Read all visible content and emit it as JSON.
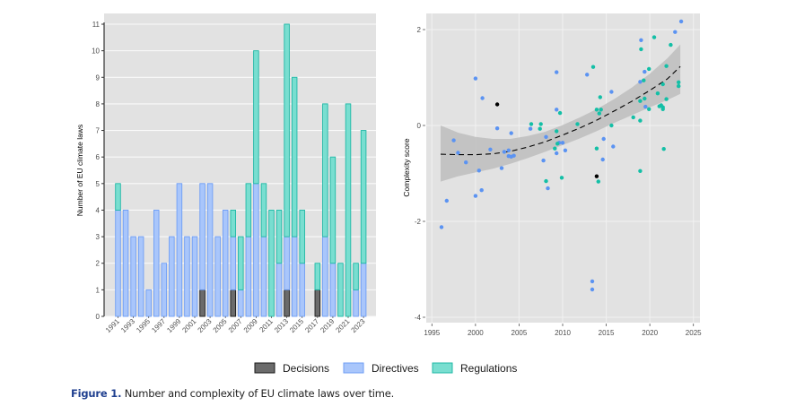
{
  "chart_data": [
    {
      "type": "bar",
      "stacked": true,
      "title": "",
      "xlabel": "",
      "ylabel": "Number of EU climate laws",
      "ylim": [
        0,
        11
      ],
      "yticks": [
        0,
        1,
        2,
        3,
        4,
        5,
        6,
        7,
        8,
        9,
        10,
        11
      ],
      "grid": true,
      "categories": [
        1991,
        1992,
        1993,
        1994,
        1995,
        1996,
        1997,
        1998,
        1999,
        2000,
        2001,
        2002,
        2003,
        2004,
        2005,
        2006,
        2007,
        2008,
        2009,
        2010,
        2011,
        2012,
        2013,
        2014,
        2015,
        2016,
        2017,
        2018,
        2019,
        2020,
        2021,
        2022,
        2023
      ],
      "xtick_labels": [
        "1991",
        "1993",
        "1995",
        "1997",
        "1999",
        "2001",
        "2003",
        "2005",
        "2007",
        "2009",
        "2011",
        "2013",
        "2015",
        "2017",
        "2019",
        "2021",
        "2023"
      ],
      "series": [
        {
          "name": "Decisions",
          "color": "#6b6b6b",
          "edge": "#1a1a1a",
          "values": [
            0,
            0,
            0,
            0,
            0,
            0,
            0,
            0,
            0,
            0,
            0,
            1,
            0,
            0,
            0,
            1,
            0,
            0,
            0,
            0,
            0,
            0,
            1,
            0,
            0,
            0,
            1,
            0,
            0,
            0,
            0,
            0,
            0
          ]
        },
        {
          "name": "Directives",
          "color": "#a9c6fb",
          "edge": "#6f9ef5",
          "values": [
            4,
            4,
            3,
            3,
            1,
            4,
            2,
            3,
            5,
            3,
            3,
            4,
            5,
            3,
            4,
            2,
            1,
            3,
            5,
            3,
            0,
            2,
            2,
            3,
            2,
            0,
            0,
            3,
            2,
            0,
            0,
            1,
            2
          ]
        },
        {
          "name": "Regulations",
          "color": "#79ded0",
          "edge": "#20b8a6",
          "values": [
            1,
            0,
            0,
            0,
            0,
            0,
            0,
            0,
            0,
            0,
            0,
            0,
            0,
            0,
            0,
            1,
            2,
            2,
            5,
            2,
            4,
            2,
            8,
            6,
            2,
            0,
            1,
            5,
            4,
            2,
            8,
            1,
            5
          ]
        }
      ]
    },
    {
      "type": "scatter",
      "title": "",
      "xlabel": "",
      "ylabel": "Complexity score",
      "xlim": [
        1994.5,
        2025.5
      ],
      "ylim": [
        -4.1,
        2.3
      ],
      "xticks": [
        1995,
        2000,
        2005,
        2010,
        2015,
        2020,
        2025
      ],
      "yticks": [
        -4,
        -2,
        0,
        2
      ],
      "grid": true,
      "series": [
        {
          "name": "Decisions",
          "color": "#000000",
          "points": [
            [
              2002.5,
              0.44
            ],
            [
              2013.9,
              -1.06
            ]
          ]
        },
        {
          "name": "Directives",
          "color": "#5b93f2",
          "points": [
            [
              1996.1,
              -2.12
            ],
            [
              1996.7,
              -1.57
            ],
            [
              1997.5,
              -0.31
            ],
            [
              1998.0,
              -0.57
            ],
            [
              1998.9,
              -0.77
            ],
            [
              2000.0,
              -1.47
            ],
            [
              2000.7,
              -1.35
            ],
            [
              2000.4,
              -0.94
            ],
            [
              2000.0,
              0.98
            ],
            [
              2000.8,
              0.57
            ],
            [
              2002.5,
              -0.06
            ],
            [
              2001.7,
              -0.5
            ],
            [
              2003.0,
              -0.89
            ],
            [
              2003.3,
              -0.55
            ],
            [
              2003.8,
              -0.52
            ],
            [
              2003.8,
              -0.64
            ],
            [
              2004.1,
              -0.65
            ],
            [
              2004.4,
              -0.63
            ],
            [
              2004.1,
              -0.16
            ],
            [
              2006.3,
              -0.07
            ],
            [
              2008.1,
              -0.24
            ],
            [
              2007.8,
              -0.73
            ],
            [
              2008.3,
              -1.31
            ],
            [
              2009.3,
              1.11
            ],
            [
              2012.8,
              1.06
            ],
            [
              2015.6,
              0.7
            ],
            [
              2009.3,
              0.33
            ],
            [
              2014.7,
              -0.28
            ],
            [
              2009.6,
              -0.36
            ],
            [
              2010.0,
              -0.36
            ],
            [
              2010.3,
              -0.52
            ],
            [
              2009.3,
              -0.58
            ],
            [
              2015.8,
              -0.44
            ],
            [
              2014.6,
              -0.71
            ],
            [
              2013.4,
              -3.25
            ],
            [
              2013.4,
              -3.42
            ],
            [
              2023.6,
              2.17
            ],
            [
              2022.9,
              1.95
            ],
            [
              2019.0,
              1.78
            ],
            [
              2019.4,
              1.12
            ],
            [
              2018.9,
              0.91
            ],
            [
              2019.5,
              0.39
            ]
          ]
        },
        {
          "name": "Regulations",
          "color": "#13bfa6",
          "points": [
            [
              2006.4,
              0.03
            ],
            [
              2007.5,
              0.03
            ],
            [
              2007.4,
              -0.07
            ],
            [
              2008.1,
              -1.16
            ],
            [
              2013.5,
              1.22
            ],
            [
              2014.3,
              0.59
            ],
            [
              2009.7,
              0.26
            ],
            [
              2013.9,
              0.33
            ],
            [
              2014.4,
              0.33
            ],
            [
              2014.2,
              0.25
            ],
            [
              2018.9,
              0.51
            ],
            [
              2018.1,
              0.17
            ],
            [
              2018.9,
              0.1
            ],
            [
              2011.7,
              0.03
            ],
            [
              2015.6,
              0.0
            ],
            [
              2009.3,
              -0.12
            ],
            [
              2009.4,
              -0.38
            ],
            [
              2009.1,
              -0.48
            ],
            [
              2013.9,
              -0.48
            ],
            [
              2014.1,
              -1.17
            ],
            [
              2009.9,
              -1.09
            ],
            [
              2018.9,
              -0.95
            ],
            [
              2020.5,
              1.84
            ],
            [
              2022.4,
              1.68
            ],
            [
              2019.0,
              1.59
            ],
            [
              2021.9,
              1.24
            ],
            [
              2019.9,
              1.18
            ],
            [
              2019.3,
              0.94
            ],
            [
              2021.5,
              0.86
            ],
            [
              2023.3,
              0.9
            ],
            [
              2023.3,
              0.82
            ],
            [
              2020.9,
              0.67
            ],
            [
              2021.9,
              0.55
            ],
            [
              2019.4,
              0.56
            ],
            [
              2019.9,
              0.34
            ],
            [
              2021.1,
              0.4
            ],
            [
              2021.3,
              0.42
            ],
            [
              2021.5,
              0.38
            ],
            [
              2021.5,
              0.34
            ],
            [
              2021.6,
              -0.49
            ]
          ]
        }
      ],
      "trend": {
        "style": "dashed",
        "color": "#000000",
        "band_color": "#bdbdbd",
        "fit": [
          [
            1996,
            -0.6
          ],
          [
            1998,
            -0.61
          ],
          [
            2000,
            -0.61
          ],
          [
            2002,
            -0.59
          ],
          [
            2004,
            -0.54
          ],
          [
            2006,
            -0.45
          ],
          [
            2008,
            -0.34
          ],
          [
            2010,
            -0.2
          ],
          [
            2012,
            -0.05
          ],
          [
            2014,
            0.12
          ],
          [
            2016,
            0.31
          ],
          [
            2018,
            0.51
          ],
          [
            2020,
            0.73
          ],
          [
            2022,
            0.97
          ],
          [
            2023.5,
            1.23
          ]
        ],
        "lower": [
          [
            1996,
            -1.17
          ],
          [
            1998,
            -1.06
          ],
          [
            2000,
            -0.98
          ],
          [
            2002,
            -0.9
          ],
          [
            2004,
            -0.8
          ],
          [
            2006,
            -0.68
          ],
          [
            2008,
            -0.55
          ],
          [
            2010,
            -0.41
          ],
          [
            2012,
            -0.27
          ],
          [
            2014,
            -0.11
          ],
          [
            2016,
            0.06
          ],
          [
            2018,
            0.22
          ],
          [
            2020,
            0.38
          ],
          [
            2022,
            0.53
          ],
          [
            2023.5,
            0.66
          ]
        ],
        "upper": [
          [
            1996,
            0.0
          ],
          [
            1998,
            -0.15
          ],
          [
            2000,
            -0.24
          ],
          [
            2002,
            -0.28
          ],
          [
            2004,
            -0.28
          ],
          [
            2006,
            -0.22
          ],
          [
            2008,
            -0.13
          ],
          [
            2010,
            0.01
          ],
          [
            2012,
            0.17
          ],
          [
            2014,
            0.35
          ],
          [
            2016,
            0.56
          ],
          [
            2018,
            0.8
          ],
          [
            2020,
            1.08
          ],
          [
            2022,
            1.4
          ],
          [
            2023.5,
            1.69
          ]
        ]
      }
    }
  ],
  "legend": {
    "position": "bottom-center",
    "items": [
      {
        "label": "Decisions",
        "fill": "#6b6b6b",
        "edge": "#1a1a1a"
      },
      {
        "label": "Directives",
        "fill": "#a9c6fb",
        "edge": "#6f9ef5"
      },
      {
        "label": "Regulations",
        "fill": "#79ded0",
        "edge": "#20b8a6"
      }
    ]
  },
  "caption": {
    "figure_number": "Figure 1.",
    "text": " Number and complexity of EU climate laws over time."
  }
}
